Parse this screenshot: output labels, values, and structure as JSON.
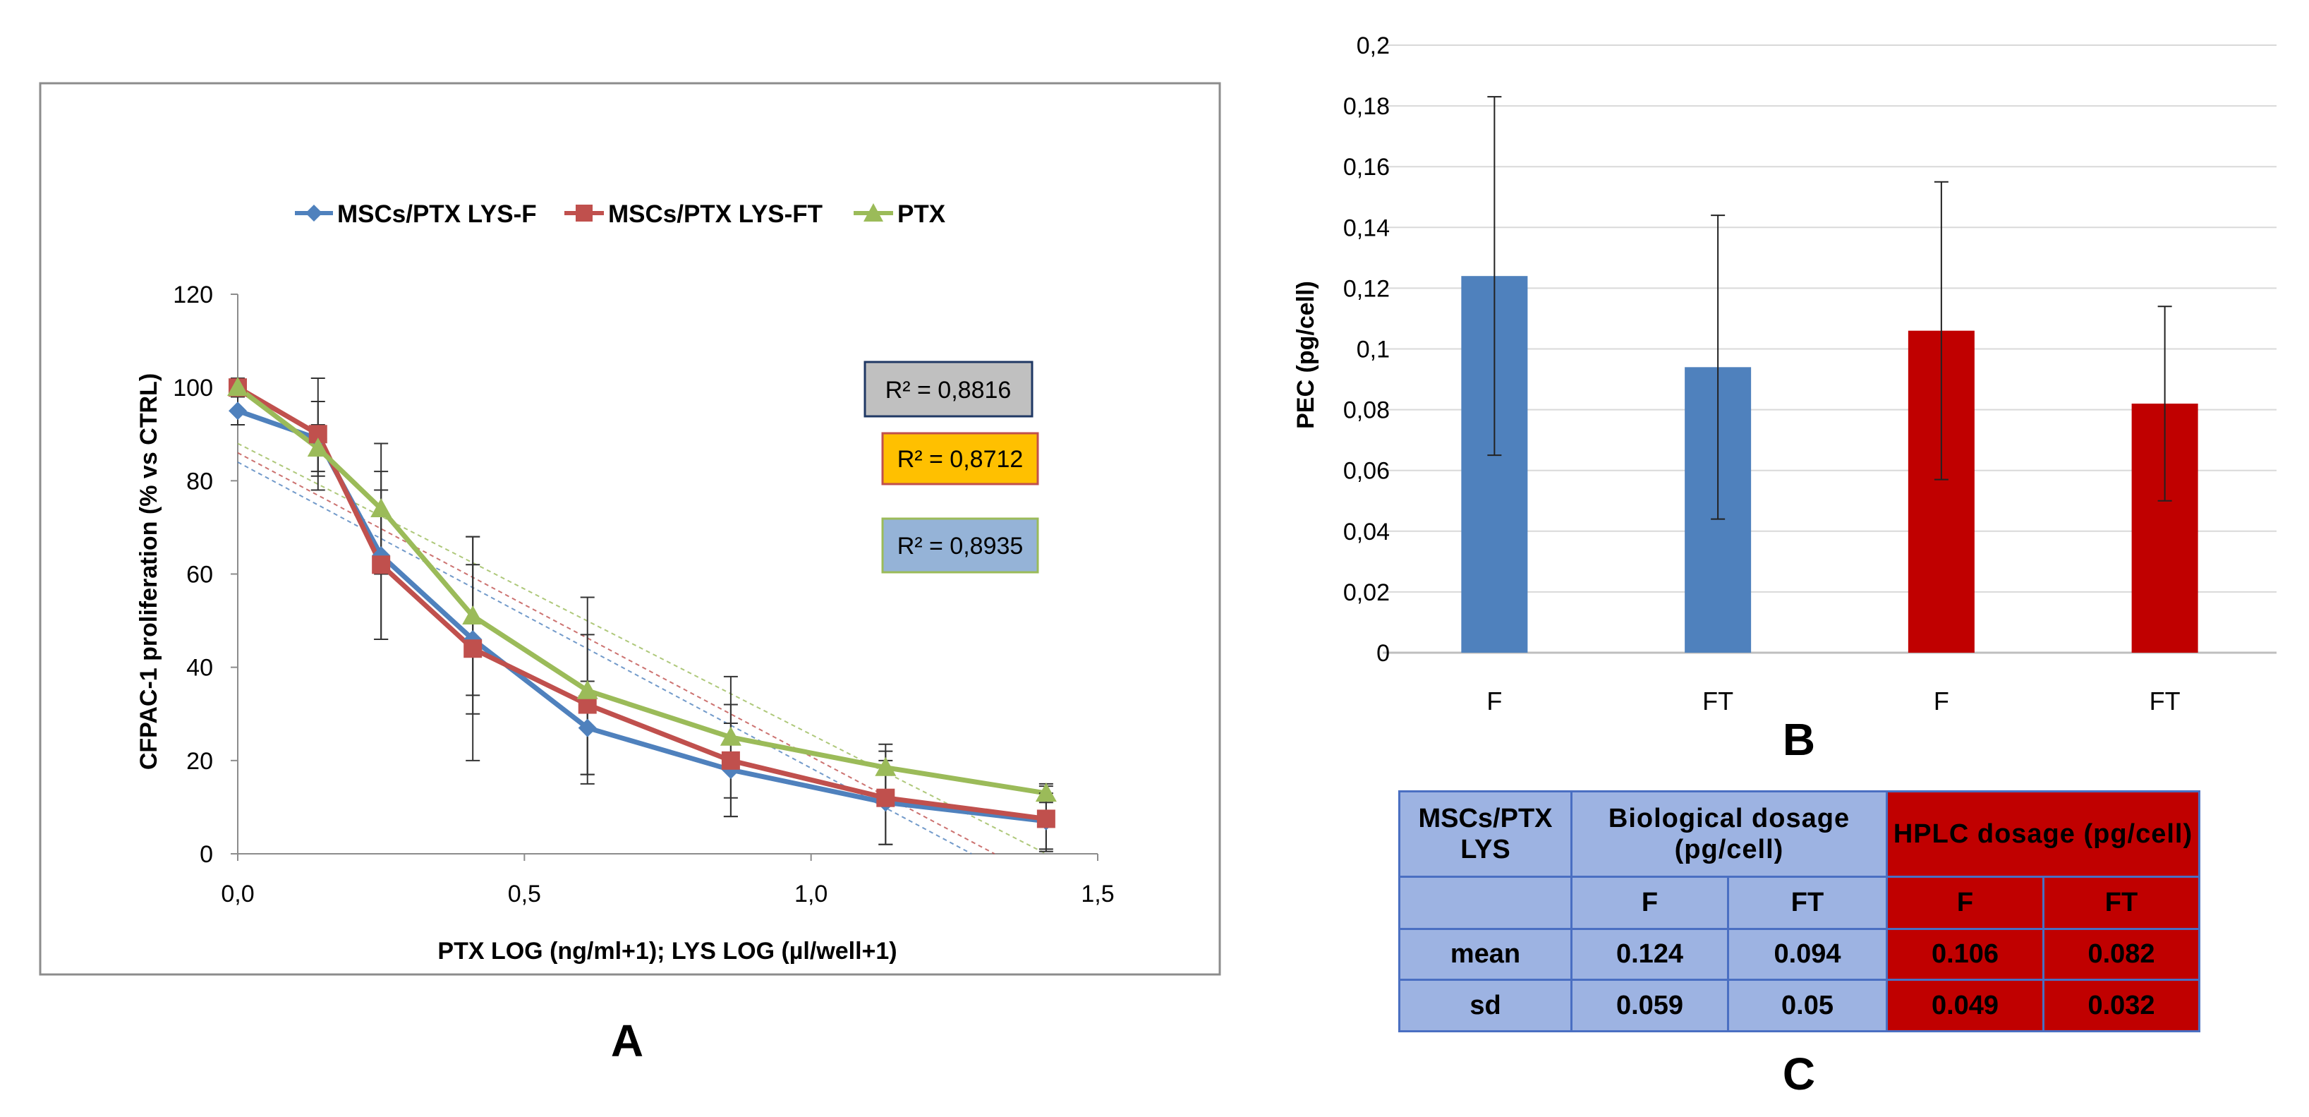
{
  "colors": {
    "f_series": "#4f81bd",
    "ft_series": "#c0504d",
    "ptx_series": "#9bbb59",
    "bar_blue": "#4f81bd",
    "bar_red": "#c00000",
    "table_blue": "#9db3e2",
    "table_red": "#c00000",
    "r2_box1": "#c0c0c0",
    "r2_box2": "#ffc000",
    "r2_box3": "#95b3d7"
  },
  "panels": {
    "a": "A",
    "b": "B",
    "c": "C"
  },
  "chart_data": [
    {
      "id": "A",
      "type": "line",
      "title": "",
      "xlabel": "PTX LOG (ng/ml+1); LYS LOG (µl/well+1)",
      "ylabel": "CFPAC-1 proliferation (% vs CTRL)",
      "xlim": [
        0,
        1.5
      ],
      "ylim": [
        0,
        120
      ],
      "xticks": [
        0,
        0.5,
        1.0,
        1.5
      ],
      "xtick_labels": [
        "0,0",
        "0,5",
        "1,0",
        "1,5"
      ],
      "yticks": [
        0,
        20,
        40,
        60,
        80,
        100,
        120
      ],
      "ytick_labels": [
        "0",
        "20",
        "40",
        "60",
        "80",
        "100",
        "120"
      ],
      "grid": false,
      "legend_position": "top",
      "series": [
        {
          "name": "MSCs/PTX LYS-F",
          "marker": "diamond",
          "x": [
            0,
            0.14,
            0.25,
            0.41,
            0.61,
            0.86,
            1.13,
            1.41
          ],
          "y": [
            95,
            89,
            64,
            46,
            27,
            18,
            11,
            7
          ],
          "err": [
            3,
            8,
            18,
            16,
            10,
            10,
            9,
            6
          ]
        },
        {
          "name": "MSCs/PTX LYS-FT",
          "marker": "square",
          "x": [
            0,
            0.14,
            0.25,
            0.41,
            0.61,
            0.86,
            1.13,
            1.41
          ],
          "y": [
            100,
            90,
            62,
            44,
            32,
            20,
            12,
            7.5
          ],
          "err": [
            2,
            12,
            16,
            24,
            15,
            12,
            10,
            7
          ]
        },
        {
          "name": "PTX",
          "marker": "triangle",
          "x": [
            0,
            0.14,
            0.25,
            0.41,
            0.61,
            0.86,
            1.13,
            1.41
          ],
          "y": [
            100,
            87,
            74,
            51,
            35,
            25,
            18.5,
            13
          ],
          "err": [
            2,
            5,
            14,
            17,
            20,
            13,
            5,
            2
          ]
        }
      ],
      "trendlines": [
        {
          "series": "MSCs/PTX LYS-F",
          "x0": 0,
          "y0": 84,
          "x1": 1.28,
          "y1": 0
        },
        {
          "series": "MSCs/PTX LYS-FT",
          "x0": 0,
          "y0": 86,
          "x1": 1.32,
          "y1": 0
        },
        {
          "series": "PTX",
          "x0": 0,
          "y0": 88,
          "x1": 1.41,
          "y1": 0
        }
      ],
      "annotations": [
        "R² = 0,8816",
        "R² = 0,8712",
        "R² = 0,8935"
      ]
    },
    {
      "id": "B",
      "type": "bar",
      "title": "",
      "xlabel": "",
      "ylabel": "PEC (pg/cell)",
      "ylim": [
        0,
        0.2
      ],
      "yticks": [
        0,
        0.02,
        0.04,
        0.06,
        0.08,
        0.1,
        0.12,
        0.14,
        0.16,
        0.18,
        0.2
      ],
      "ytick_labels": [
        "0",
        "0,02",
        "0,04",
        "0,06",
        "0,08",
        "0,1",
        "0,12",
        "0,14",
        "0,16",
        "0,18",
        "0,2"
      ],
      "categories": [
        "F",
        "FT",
        "F",
        "FT"
      ],
      "values": [
        0.124,
        0.094,
        0.106,
        0.082
      ],
      "errors": [
        0.059,
        0.05,
        0.049,
        0.032
      ],
      "bar_colors": [
        "#4f81bd",
        "#4f81bd",
        "#c00000",
        "#c00000"
      ],
      "grid": true
    },
    {
      "id": "C",
      "type": "table",
      "corner_header": "MSCs/PTX LYS",
      "group_headers": [
        "Biological dosage (pg/cell)",
        "HPLC dosage (pg/cell)"
      ],
      "sub_headers": [
        "F",
        "FT",
        "F",
        "FT"
      ],
      "rows": [
        {
          "label": "mean",
          "values": [
            "0.124",
            "0.094",
            "0.106",
            "0.082"
          ]
        },
        {
          "label": "sd",
          "values": [
            "0.059",
            "0.05",
            "0.049",
            "0.032"
          ]
        }
      ]
    }
  ]
}
